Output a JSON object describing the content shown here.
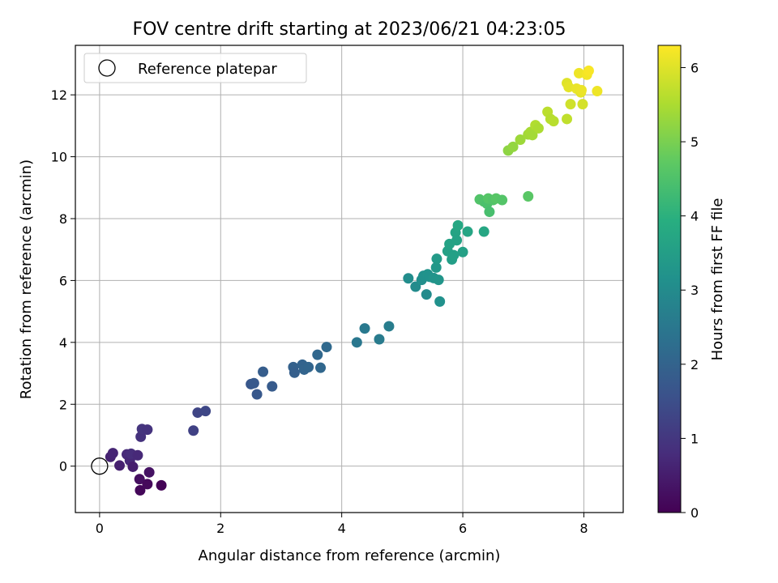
{
  "chart_data": {
    "type": "scatter",
    "title": "FOV centre drift starting at 2023/06/21 04:23:05",
    "xlabel": "Angular distance from reference (arcmin)",
    "ylabel": "Rotation from reference (arcmin)",
    "xlim": [
      -0.4,
      8.65
    ],
    "ylim": [
      -1.5,
      13.6
    ],
    "xticks": [
      "0",
      "2",
      "4",
      "6",
      "8"
    ],
    "yticks": [
      "0",
      "2",
      "4",
      "6",
      "8",
      "10",
      "12"
    ],
    "grid": true,
    "legend": {
      "placement": "upper-left",
      "entries": [
        "Reference platepar"
      ]
    },
    "reference_point": {
      "x": 0,
      "y": 0
    },
    "colorbar": {
      "label": "Hours from first FF file",
      "colormap": "viridis",
      "range": [
        0,
        6.3
      ],
      "ticks": [
        "0",
        "1",
        "2",
        "3",
        "4",
        "5",
        "6"
      ]
    },
    "points": [
      {
        "x": 0.18,
        "y": 0.3,
        "t": 0.6
      },
      {
        "x": 0.22,
        "y": 0.42,
        "t": 0.65
      },
      {
        "x": 0.33,
        "y": 0.02,
        "t": 0.55
      },
      {
        "x": 0.45,
        "y": 0.38,
        "t": 0.75
      },
      {
        "x": 0.5,
        "y": 0.18,
        "t": 0.7
      },
      {
        "x": 0.52,
        "y": 0.4,
        "t": 0.8
      },
      {
        "x": 0.55,
        "y": -0.02,
        "t": 0.5
      },
      {
        "x": 0.63,
        "y": 0.35,
        "t": 0.72
      },
      {
        "x": 0.66,
        "y": -0.42,
        "t": 0.25
      },
      {
        "x": 0.67,
        "y": -0.78,
        "t": 0.1
      },
      {
        "x": 0.68,
        "y": 0.95,
        "t": 0.9
      },
      {
        "x": 0.7,
        "y": 1.2,
        "t": 0.95
      },
      {
        "x": 0.79,
        "y": 1.18,
        "t": 0.92
      },
      {
        "x": 0.79,
        "y": -0.58,
        "t": 0.15
      },
      {
        "x": 0.82,
        "y": -0.2,
        "t": 0.3
      },
      {
        "x": 1.02,
        "y": -0.62,
        "t": 0.05
      },
      {
        "x": 1.55,
        "y": 1.15,
        "t": 1.22
      },
      {
        "x": 1.62,
        "y": 1.73,
        "t": 1.3
      },
      {
        "x": 1.75,
        "y": 1.78,
        "t": 1.35
      },
      {
        "x": 2.5,
        "y": 2.65,
        "t": 1.7
      },
      {
        "x": 2.55,
        "y": 2.68,
        "t": 1.75
      },
      {
        "x": 2.6,
        "y": 2.32,
        "t": 1.72
      },
      {
        "x": 2.7,
        "y": 3.05,
        "t": 1.85
      },
      {
        "x": 2.85,
        "y": 2.58,
        "t": 1.8
      },
      {
        "x": 3.2,
        "y": 3.2,
        "t": 1.95
      },
      {
        "x": 3.22,
        "y": 3.02,
        "t": 1.9
      },
      {
        "x": 3.35,
        "y": 3.28,
        "t": 2.0
      },
      {
        "x": 3.38,
        "y": 3.12,
        "t": 2.02
      },
      {
        "x": 3.45,
        "y": 3.2,
        "t": 2.05
      },
      {
        "x": 3.6,
        "y": 3.6,
        "t": 2.1
      },
      {
        "x": 3.65,
        "y": 3.18,
        "t": 2.08
      },
      {
        "x": 3.75,
        "y": 3.85,
        "t": 2.15
      },
      {
        "x": 4.25,
        "y": 4.0,
        "t": 2.5
      },
      {
        "x": 4.38,
        "y": 4.45,
        "t": 2.55
      },
      {
        "x": 4.62,
        "y": 4.1,
        "t": 2.6
      },
      {
        "x": 4.78,
        "y": 4.52,
        "t": 2.65
      },
      {
        "x": 5.1,
        "y": 6.07,
        "t": 3.05
      },
      {
        "x": 5.22,
        "y": 5.8,
        "t": 3.0
      },
      {
        "x": 5.32,
        "y": 6.02,
        "t": 3.1
      },
      {
        "x": 5.35,
        "y": 6.15,
        "t": 3.15
      },
      {
        "x": 5.4,
        "y": 5.55,
        "t": 3.0
      },
      {
        "x": 5.42,
        "y": 6.2,
        "t": 3.2
      },
      {
        "x": 5.45,
        "y": 6.12,
        "t": 3.18
      },
      {
        "x": 5.52,
        "y": 6.08,
        "t": 3.22
      },
      {
        "x": 5.56,
        "y": 6.42,
        "t": 3.35
      },
      {
        "x": 5.57,
        "y": 6.7,
        "t": 3.4
      },
      {
        "x": 5.6,
        "y": 6.02,
        "t": 3.25
      },
      {
        "x": 5.62,
        "y": 5.32,
        "t": 3.15
      },
      {
        "x": 5.75,
        "y": 6.95,
        "t": 3.55
      },
      {
        "x": 5.78,
        "y": 7.18,
        "t": 3.6
      },
      {
        "x": 5.82,
        "y": 6.68,
        "t": 3.5
      },
      {
        "x": 5.85,
        "y": 6.82,
        "t": 3.55
      },
      {
        "x": 5.88,
        "y": 7.55,
        "t": 3.65
      },
      {
        "x": 5.9,
        "y": 7.3,
        "t": 3.62
      },
      {
        "x": 5.92,
        "y": 7.78,
        "t": 3.75
      },
      {
        "x": 6.0,
        "y": 6.92,
        "t": 3.55
      },
      {
        "x": 6.08,
        "y": 7.58,
        "t": 3.7
      },
      {
        "x": 6.35,
        "y": 7.58,
        "t": 3.72
      },
      {
        "x": 6.28,
        "y": 8.62,
        "t": 4.55
      },
      {
        "x": 6.35,
        "y": 8.55,
        "t": 4.5
      },
      {
        "x": 6.4,
        "y": 8.48,
        "t": 4.45
      },
      {
        "x": 6.42,
        "y": 8.65,
        "t": 4.6
      },
      {
        "x": 6.44,
        "y": 8.22,
        "t": 4.4
      },
      {
        "x": 6.5,
        "y": 8.6,
        "t": 4.55
      },
      {
        "x": 6.55,
        "y": 8.65,
        "t": 4.62
      },
      {
        "x": 6.65,
        "y": 8.6,
        "t": 4.58
      },
      {
        "x": 7.08,
        "y": 8.72,
        "t": 4.65
      },
      {
        "x": 6.75,
        "y": 10.2,
        "t": 5.2
      },
      {
        "x": 6.83,
        "y": 10.32,
        "t": 5.25
      },
      {
        "x": 6.95,
        "y": 10.55,
        "t": 5.35
      },
      {
        "x": 7.08,
        "y": 10.72,
        "t": 5.4
      },
      {
        "x": 7.12,
        "y": 10.8,
        "t": 5.45
      },
      {
        "x": 7.15,
        "y": 10.7,
        "t": 5.42
      },
      {
        "x": 7.2,
        "y": 11.02,
        "t": 5.55
      },
      {
        "x": 7.25,
        "y": 10.92,
        "t": 5.5
      },
      {
        "x": 7.4,
        "y": 11.45,
        "t": 5.65
      },
      {
        "x": 7.45,
        "y": 11.22,
        "t": 5.6
      },
      {
        "x": 7.5,
        "y": 11.15,
        "t": 5.62
      },
      {
        "x": 7.72,
        "y": 11.22,
        "t": 5.7
      },
      {
        "x": 7.72,
        "y": 12.38,
        "t": 6.0
      },
      {
        "x": 7.75,
        "y": 12.25,
        "t": 6.05
      },
      {
        "x": 7.78,
        "y": 11.7,
        "t": 5.85
      },
      {
        "x": 7.88,
        "y": 12.2,
        "t": 6.1
      },
      {
        "x": 7.92,
        "y": 12.7,
        "t": 6.15
      },
      {
        "x": 7.95,
        "y": 12.08,
        "t": 6.05
      },
      {
        "x": 7.96,
        "y": 12.15,
        "t": 6.12
      },
      {
        "x": 7.98,
        "y": 11.7,
        "t": 5.9
      },
      {
        "x": 8.05,
        "y": 12.65,
        "t": 6.2
      },
      {
        "x": 8.08,
        "y": 12.78,
        "t": 6.25
      },
      {
        "x": 8.22,
        "y": 12.12,
        "t": 6.15
      }
    ]
  }
}
